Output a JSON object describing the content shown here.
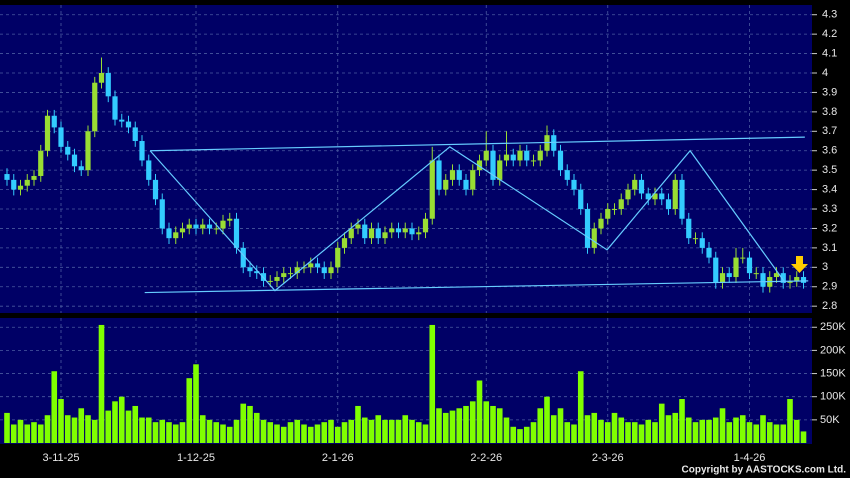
{
  "chart_data": {
    "type": "candlestick",
    "copyright": "Copyright by AASTOCKS.com Ltd.",
    "categories": [
      null,
      null,
      null,
      null,
      null,
      null,
      null,
      null,
      "3-11-25",
      null,
      null,
      null,
      null,
      null,
      null,
      null,
      null,
      null,
      null,
      null,
      null,
      null,
      null,
      null,
      null,
      null,
      null,
      null,
      "1-12-25",
      null,
      null,
      null,
      null,
      null,
      null,
      null,
      null,
      null,
      null,
      null,
      null,
      null,
      null,
      null,
      null,
      null,
      null,
      null,
      null,
      "2-1-26",
      null,
      null,
      null,
      null,
      null,
      null,
      null,
      null,
      null,
      null,
      null,
      null,
      null,
      null,
      null,
      null,
      null,
      null,
      null,
      null,
      null,
      "2-2-26",
      null,
      null,
      null,
      null,
      null,
      null,
      null,
      null,
      null,
      null,
      null,
      null,
      null,
      null,
      null,
      null,
      null,
      "2-3-26",
      null,
      null,
      null,
      null,
      null,
      null,
      null,
      null,
      null,
      null,
      null,
      null,
      null,
      null,
      null,
      null,
      null,
      null,
      null,
      null,
      "1-4-26",
      null,
      null,
      null,
      null,
      null,
      null,
      null,
      null
    ],
    "open": [
      3.48,
      3.45,
      3.4,
      3.42,
      3.45,
      3.47,
      3.6,
      3.78,
      3.72,
      3.62,
      3.58,
      3.52,
      3.5,
      3.7,
      3.95,
      4.0,
      3.88,
      3.76,
      3.75,
      3.72,
      3.65,
      3.55,
      3.45,
      3.35,
      3.2,
      3.15,
      3.18,
      3.2,
      3.22,
      3.2,
      3.22,
      3.2,
      3.2,
      3.24,
      3.25,
      3.1,
      3.0,
      2.98,
      2.97,
      2.93,
      2.93,
      2.95,
      2.97,
      2.97,
      3.0,
      3.0,
      3.02,
      3.0,
      2.97,
      3.0,
      3.1,
      3.15,
      3.2,
      3.22,
      3.15,
      3.2,
      3.15,
      3.18,
      3.2,
      3.18,
      3.2,
      3.17,
      3.18,
      3.25,
      3.55,
      3.4,
      3.45,
      3.5,
      3.45,
      3.4,
      3.5,
      3.55,
      3.6,
      3.45,
      3.55,
      3.58,
      3.55,
      3.6,
      3.55,
      3.55,
      3.6,
      3.68,
      3.6,
      3.5,
      3.45,
      3.4,
      3.3,
      3.1,
      3.2,
      3.25,
      3.3,
      3.3,
      3.35,
      3.4,
      3.45,
      3.38,
      3.35,
      3.38,
      3.35,
      3.3,
      3.45,
      3.25,
      3.15,
      3.15,
      3.1,
      3.05,
      2.92,
      2.97,
      2.95,
      3.05,
      3.05,
      2.97,
      2.97,
      2.9,
      2.95,
      2.97,
      2.92,
      2.93,
      2.95
    ],
    "high": [
      3.51,
      3.48,
      3.45,
      3.48,
      3.5,
      3.63,
      3.81,
      3.81,
      3.75,
      3.65,
      3.61,
      3.55,
      3.73,
      3.98,
      4.08,
      4.03,
      3.91,
      3.79,
      3.78,
      3.75,
      3.68,
      3.58,
      3.48,
      3.38,
      3.23,
      3.21,
      3.23,
      3.25,
      3.25,
      3.25,
      3.25,
      3.23,
      3.27,
      3.28,
      3.28,
      3.13,
      3.03,
      3.01,
      3.0,
      2.96,
      2.98,
      3.0,
      3.0,
      3.03,
      3.03,
      3.05,
      3.05,
      3.03,
      3.03,
      3.13,
      3.18,
      3.23,
      3.25,
      3.25,
      3.23,
      3.23,
      3.21,
      3.23,
      3.23,
      3.23,
      3.23,
      3.21,
      3.28,
      3.62,
      3.58,
      3.48,
      3.53,
      3.53,
      3.48,
      3.53,
      3.58,
      3.7,
      3.63,
      3.58,
      3.7,
      3.61,
      3.63,
      3.63,
      3.58,
      3.63,
      3.73,
      3.71,
      3.63,
      3.53,
      3.48,
      3.43,
      3.33,
      3.23,
      3.28,
      3.33,
      3.33,
      3.38,
      3.43,
      3.48,
      3.48,
      3.41,
      3.41,
      3.41,
      3.38,
      3.48,
      3.48,
      3.28,
      3.18,
      3.18,
      3.13,
      3.08,
      3.0,
      3.0,
      3.1,
      3.1,
      3.08,
      3.0,
      3.0,
      2.98,
      3.0,
      3.0,
      2.96,
      2.98,
      2.98
    ],
    "low": [
      3.42,
      3.37,
      3.37,
      3.39,
      3.42,
      3.44,
      3.57,
      3.69,
      3.59,
      3.55,
      3.49,
      3.47,
      3.47,
      3.67,
      3.92,
      3.85,
      3.73,
      3.72,
      3.69,
      3.62,
      3.52,
      3.42,
      3.32,
      3.17,
      3.12,
      3.12,
      3.15,
      3.17,
      3.17,
      3.17,
      3.17,
      3.17,
      3.17,
      3.21,
      3.07,
      2.97,
      2.95,
      2.94,
      2.9,
      2.9,
      2.9,
      2.92,
      2.94,
      2.94,
      2.97,
      2.97,
      2.97,
      2.94,
      2.94,
      2.97,
      3.07,
      3.12,
      3.17,
      3.12,
      3.12,
      3.12,
      3.12,
      3.15,
      3.15,
      3.15,
      3.14,
      3.14,
      3.15,
      3.22,
      3.37,
      3.37,
      3.42,
      3.42,
      3.37,
      3.37,
      3.47,
      3.52,
      3.42,
      3.42,
      3.52,
      3.52,
      3.52,
      3.52,
      3.52,
      3.52,
      3.57,
      3.57,
      3.47,
      3.42,
      3.37,
      3.27,
      3.07,
      3.07,
      3.17,
      3.22,
      3.27,
      3.27,
      3.32,
      3.37,
      3.35,
      3.32,
      3.32,
      3.32,
      3.27,
      3.27,
      3.22,
      3.12,
      3.12,
      3.07,
      3.02,
      2.89,
      2.89,
      2.92,
      2.92,
      3.02,
      2.94,
      2.94,
      2.87,
      2.87,
      2.92,
      2.89,
      2.89,
      2.9,
      2.89
    ],
    "close": [
      3.45,
      3.4,
      3.42,
      3.45,
      3.47,
      3.6,
      3.78,
      3.72,
      3.62,
      3.58,
      3.52,
      3.5,
      3.7,
      3.95,
      4.0,
      3.88,
      3.76,
      3.75,
      3.72,
      3.65,
      3.55,
      3.45,
      3.35,
      3.2,
      3.15,
      3.18,
      3.2,
      3.22,
      3.2,
      3.22,
      3.2,
      3.2,
      3.24,
      3.25,
      3.1,
      3.0,
      2.98,
      2.97,
      2.93,
      2.93,
      2.95,
      2.97,
      2.97,
      3.0,
      3.0,
      3.02,
      3.0,
      2.97,
      3.0,
      3.1,
      3.15,
      3.2,
      3.22,
      3.15,
      3.2,
      3.15,
      3.18,
      3.2,
      3.18,
      3.2,
      3.17,
      3.18,
      3.25,
      3.55,
      3.4,
      3.45,
      3.5,
      3.45,
      3.4,
      3.5,
      3.55,
      3.6,
      3.45,
      3.55,
      3.58,
      3.55,
      3.6,
      3.55,
      3.55,
      3.6,
      3.68,
      3.6,
      3.5,
      3.45,
      3.4,
      3.3,
      3.1,
      3.2,
      3.25,
      3.3,
      3.3,
      3.35,
      3.4,
      3.45,
      3.38,
      3.35,
      3.38,
      3.35,
      3.3,
      3.45,
      3.25,
      3.15,
      3.15,
      3.1,
      3.05,
      2.92,
      2.97,
      2.95,
      3.05,
      3.05,
      2.97,
      2.97,
      2.9,
      2.95,
      2.97,
      2.92,
      2.93,
      2.95,
      2.92
    ],
    "volume": [
      65000,
      40000,
      50000,
      40000,
      45000,
      40000,
      60000,
      155000,
      95000,
      60000,
      55000,
      75000,
      60000,
      50000,
      255000,
      70000,
      90000,
      100000,
      70000,
      80000,
      55000,
      55000,
      45000,
      50000,
      45000,
      40000,
      45000,
      140000,
      170000,
      60000,
      50000,
      45000,
      40000,
      35000,
      50000,
      85000,
      80000,
      65000,
      50000,
      45000,
      40000,
      35000,
      45000,
      50000,
      40000,
      35000,
      40000,
      45000,
      50000,
      35000,
      45000,
      50000,
      80000,
      55000,
      50000,
      60000,
      50000,
      50000,
      50000,
      60000,
      50000,
      45000,
      40000,
      255000,
      75000,
      65000,
      70000,
      75000,
      80000,
      90000,
      135000,
      90000,
      80000,
      75000,
      55000,
      35000,
      30000,
      35000,
      45000,
      75000,
      100000,
      60000,
      75000,
      45000,
      40000,
      155000,
      60000,
      65000,
      50000,
      45000,
      65000,
      55000,
      45000,
      45000,
      40000,
      50000,
      45000,
      85000,
      60000,
      65000,
      95000,
      55000,
      45000,
      50000,
      50000,
      55000,
      75000,
      45000,
      55000,
      60000,
      45000,
      40000,
      60000,
      45000,
      40000,
      40000,
      95000,
      50000,
      25000
    ],
    "ylim": [
      2.77,
      4.35
    ],
    "yticks": [
      2.8,
      2.9,
      3,
      3.1,
      3.2,
      3.3,
      3.4,
      3.5,
      3.6,
      3.7,
      3.8,
      3.9,
      4,
      4.1,
      4.2,
      4.3
    ],
    "volume_lim": [
      0,
      270000
    ],
    "volume_ticks": [
      {
        "value": 50000,
        "label": "50K"
      },
      {
        "value": 100000,
        "label": "100K"
      },
      {
        "value": 150000,
        "label": "150K"
      },
      {
        "value": 200000,
        "label": "200K"
      },
      {
        "value": 250000,
        "label": "250K"
      }
    ],
    "trendlines": [
      {
        "x": [
          21.2,
          118.2
        ],
        "y": [
          3.6,
          3.67
        ]
      },
      {
        "x": [
          20.4,
          118.7
        ],
        "y": [
          2.87,
          2.93
        ]
      },
      {
        "x": [
          21.2,
          39.7,
          65.6,
          88.9,
          101.2,
          115.3
        ],
        "y": [
          3.6,
          2.88,
          3.62,
          3.09,
          3.6,
          2.92
        ]
      }
    ],
    "grid": true,
    "colors": {
      "up": "#99dd33",
      "down": "#33ccff",
      "volume": "#80ff00",
      "trendline": "#66ccff",
      "panel": "#000066",
      "grid": "#4a5aa0"
    }
  }
}
